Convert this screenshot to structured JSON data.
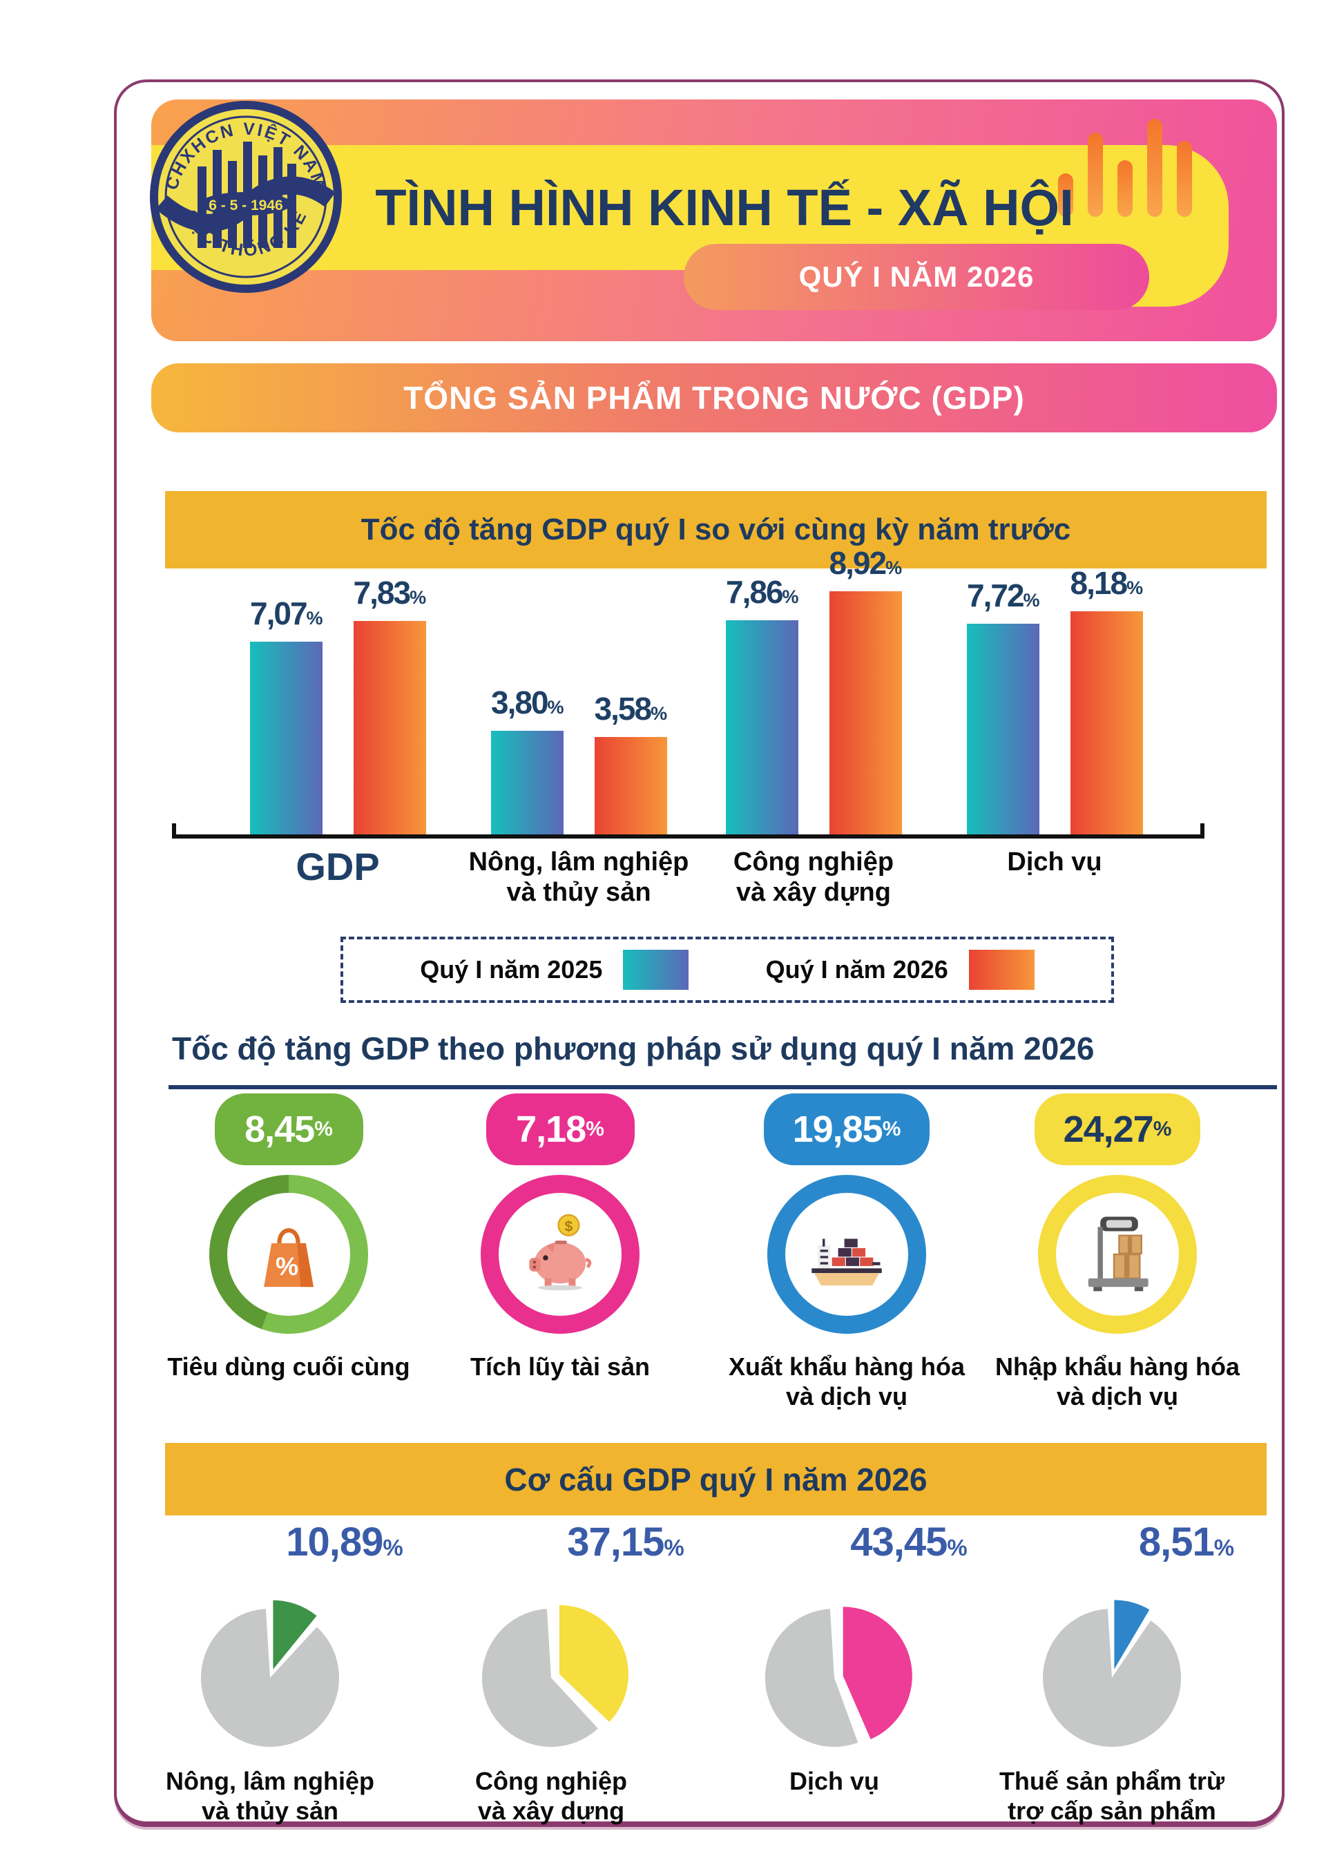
{
  "header": {
    "title": "TÌNH HÌNH KINH TẾ - XÃ HỘI",
    "subtitle": "QUÝ I NĂM 2026",
    "logo": {
      "arc_top": "CHXHCN VIỆT NAM",
      "arc_bottom": "CỤC THỐNG KÊ",
      "center": "6 - 5 - 1946"
    },
    "chart_icon_bars": [
      63,
      122,
      82,
      142,
      110
    ]
  },
  "banners": {
    "gdp": "TỔNG SẢN PHẨM TRONG NƯỚC (GDP)"
  },
  "symbols": {
    "percent": "%",
    "dollar": "$"
  },
  "colors": {
    "card_border": "#8C3A6E",
    "header_gradient": [
      "#F9A24D",
      "#F0519D"
    ],
    "yellow_band": "#FAE13C",
    "title_navy": "#203A64",
    "ribbon_gradient": [
      "#F49A5E",
      "#EE4C9B"
    ],
    "gdp_banner_gradient": [
      "#F6B73C",
      "#EF4FA0"
    ],
    "section_banner_bg": "#F0B42E",
    "series_2025_gradient": [
      "#17BEBB",
      "#5C68B8"
    ],
    "series_2026_gradient": [
      "#E94333",
      "#F7973B"
    ],
    "value_text": "#1F4066",
    "pie_value_text": "#3A5CA8",
    "pie_base": "#C6C8C7"
  },
  "chart_data": [
    {
      "type": "bar",
      "title": "Tốc độ tăng GDP quý I so với cùng kỳ năm trước",
      "unit": "%",
      "categories": [
        "GDP",
        "Nông, lâm nghiệp và thủy sản",
        "Công nghiệp và xây dựng",
        "Dịch vụ"
      ],
      "category_lines": [
        [
          "GDP"
        ],
        [
          "Nông, lâm nghiệp",
          "và thủy sản"
        ],
        [
          "Công nghiệp",
          "và xây dựng"
        ],
        [
          "Dịch vụ"
        ]
      ],
      "series": [
        {
          "name": "Quý I năm 2025",
          "values": [
            7.07,
            3.8,
            7.86,
            7.72
          ],
          "display": [
            "7,07",
            "3,80",
            "7,86",
            "7,72"
          ]
        },
        {
          "name": "Quý I năm 2026",
          "values": [
            7.83,
            3.58,
            8.92,
            8.18
          ],
          "display": [
            "7,83",
            "3,58",
            "8,92",
            "8,18"
          ]
        }
      ],
      "ylim": [
        0,
        9.5
      ],
      "grid": false,
      "legend_position": "bottom"
    },
    {
      "type": "kpi",
      "title": "Tốc độ tăng GDP theo phương pháp sử dụng quý I năm 2026",
      "unit": "%",
      "items": [
        {
          "label": "Tiêu dùng cuối cùng",
          "label_lines": [
            "Tiêu dùng cuối cùng"
          ],
          "value": 8.45,
          "display": "8,45",
          "color": "#72B23F",
          "ring_dark": "#5E9A33",
          "ring_light": "#7CBF4D",
          "text_color": "#FFFFFF",
          "icon": "shopping-bag-icon"
        },
        {
          "label": "Tích lũy tài sản",
          "label_lines": [
            "Tích lũy tài sản"
          ],
          "value": 7.18,
          "display": "7,18",
          "color": "#E9308F",
          "text_color": "#FFFFFF",
          "icon": "piggy-bank-icon"
        },
        {
          "label": "Xuất khẩu hàng hóa và dịch vụ",
          "label_lines": [
            "Xuất khẩu hàng hóa",
            "và dịch vụ"
          ],
          "value": 19.85,
          "display": "19,85",
          "color": "#2A89CC",
          "text_color": "#FFFFFF",
          "icon": "cargo-ship-icon"
        },
        {
          "label": "Nhập khẩu hàng hóa và dịch vụ",
          "label_lines": [
            "Nhập khẩu hàng hóa",
            "và dịch vụ"
          ],
          "value": 24.27,
          "display": "24,27",
          "color": "#F5DC3F",
          "text_color": "#1E3A5F",
          "icon": "weighing-scale-icon"
        }
      ]
    },
    {
      "type": "pie",
      "title": "Cơ cấu GDP quý I năm 2026",
      "unit": "%",
      "items": [
        {
          "label": "Nông, lâm nghiệp và thủy sản",
          "label_lines": [
            "Nông, lâm nghiệp",
            "và thủy sản"
          ],
          "value": 10.89,
          "display": "10,89",
          "color": "#3D9348"
        },
        {
          "label": "Công nghiệp và xây dựng",
          "label_lines": [
            "Công nghiệp",
            "và xây dựng"
          ],
          "value": 37.15,
          "display": "37,15",
          "color": "#F5DE3E"
        },
        {
          "label": "Dịch vụ",
          "label_lines": [
            "Dịch vụ"
          ],
          "value": 43.45,
          "display": "43,45",
          "color": "#EE3D96"
        },
        {
          "label": "Thuế sản phẩm trừ trợ cấp sản phẩm",
          "label_lines": [
            "Thuế sản phẩm trừ",
            "trợ cấp sản phẩm"
          ],
          "value": 8.51,
          "display": "8,51",
          "color": "#2E86C8"
        }
      ]
    }
  ]
}
